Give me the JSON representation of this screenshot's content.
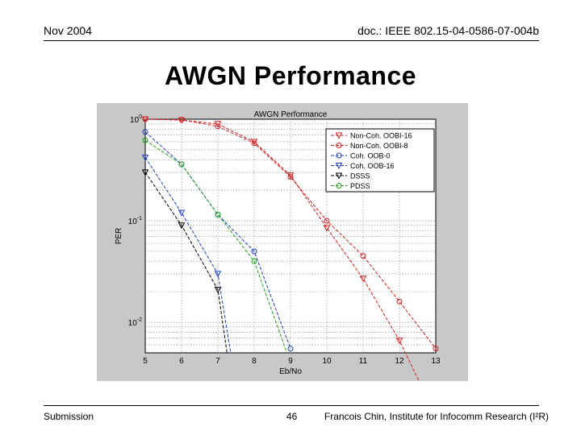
{
  "header": {
    "date": "Nov 2004",
    "doc_id": "doc.: IEEE 802.15-04-0586-07-004b"
  },
  "slide": {
    "title": "AWGN Performance"
  },
  "footer": {
    "left": "Submission",
    "page": "46",
    "right": "Francois Chin, Institute for Infocomm Research (I²R)"
  },
  "chart_data": {
    "type": "line",
    "title": "AWGN Performance",
    "xlabel": "Eb/No",
    "ylabel": "PER",
    "xlim": [
      5,
      13
    ],
    "ylim": [
      0.005,
      1
    ],
    "yscale": "log",
    "grid": true,
    "legend_position": "top-right",
    "x_ticks": [
      "5",
      "6",
      "7",
      "8",
      "9",
      "10",
      "11",
      "12",
      "13"
    ],
    "y_ticks": [
      {
        "value": 1,
        "base": "10",
        "exp": "0"
      },
      {
        "value": 0.1,
        "base": "10",
        "exp": "-1"
      },
      {
        "value": 0.01,
        "base": "10",
        "exp": "-2"
      }
    ],
    "series": [
      {
        "name": "Non-Coh. OOBI-16",
        "color": "#d02020",
        "marker": "triangle-down",
        "x": [
          5,
          6,
          7,
          8,
          9,
          10,
          11,
          12,
          13
        ],
        "y": [
          1.0,
          0.98,
          0.9,
          0.6,
          0.28,
          0.085,
          0.027,
          0.0066,
          0.0012
        ]
      },
      {
        "name": "Non-Coh. OOBI-8",
        "color": "#d02020",
        "marker": "circle",
        "x": [
          5,
          6,
          7,
          8,
          9,
          10,
          11,
          12,
          13
        ],
        "y": [
          1.0,
          0.99,
          0.85,
          0.58,
          0.27,
          0.1,
          0.045,
          0.016,
          0.0055
        ]
      },
      {
        "name": "Coh. OOB-0",
        "color": "#2040c0",
        "marker": "circle",
        "x": [
          5,
          6,
          7,
          8,
          9
        ],
        "y": [
          0.75,
          0.36,
          0.115,
          0.05,
          0.0055
        ]
      },
      {
        "name": "Coh. OOB-16",
        "color": "#2040c0",
        "marker": "triangle-down",
        "x": [
          5,
          6,
          7,
          7.35
        ],
        "y": [
          0.42,
          0.12,
          0.03,
          0.005
        ]
      },
      {
        "name": "DSSS",
        "color": "#000000",
        "marker": "triangle-down",
        "x": [
          5,
          6,
          7,
          7.25
        ],
        "y": [
          0.3,
          0.09,
          0.021,
          0.005
        ]
      },
      {
        "name": "PDSS",
        "color": "#20a020",
        "marker": "circle",
        "x": [
          5,
          6,
          7,
          8,
          8.9
        ],
        "y": [
          0.62,
          0.36,
          0.115,
          0.04,
          0.005
        ]
      }
    ]
  }
}
